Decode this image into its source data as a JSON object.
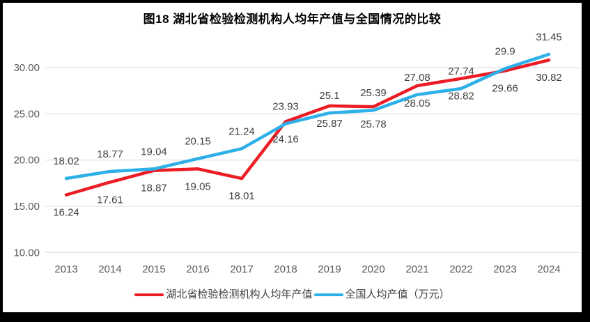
{
  "window": {
    "frame_color": "#000000",
    "background": "#ffffff"
  },
  "chart_data": {
    "type": "line",
    "title": "图18 湖北省检验检测机构人均年产值与全国情况的比较",
    "categories": [
      "2013",
      "2014",
      "2015",
      "2016",
      "2017",
      "2018",
      "2019",
      "2020",
      "2021",
      "2022",
      "2023",
      "2024"
    ],
    "series": [
      {
        "name": "湖北省检验检测机构人均年产值",
        "color": "#EB1C24",
        "values": [
          16.24,
          17.61,
          18.87,
          19.05,
          18.01,
          24.16,
          25.87,
          25.78,
          28.05,
          28.82,
          29.66,
          30.82
        ],
        "labels": [
          "16.24",
          "17.61",
          "18.87",
          "19.05",
          "18.01",
          "24.16",
          "25.87",
          "25.78",
          "28.05",
          "28.82",
          "29.66",
          "30.82"
        ],
        "label_position": "below"
      },
      {
        "name": "全国人均产值（万元）",
        "color": "#2DB0E8",
        "values": [
          18.02,
          18.77,
          19.04,
          20.15,
          21.24,
          23.93,
          25.1,
          25.39,
          27.08,
          27.74,
          29.9,
          31.45
        ],
        "labels": [
          "18.02",
          "18.77",
          "19.04",
          "20.15",
          "21.24",
          "23.93",
          "25.1",
          "25.39",
          "27.08",
          "27.74",
          "29.9",
          "31.45"
        ],
        "label_position": "above"
      }
    ],
    "xlabel": "",
    "ylabel": "",
    "y_axis": {
      "range": [
        10,
        35
      ],
      "tick_values": [
        10,
        15,
        20,
        25,
        30
      ],
      "tick_labels": [
        "10.00",
        "15.00",
        "20.00",
        "25.00",
        "30.00"
      ]
    },
    "grid": true,
    "legend_position": "bottom",
    "styles": {
      "gridline_color": "#D9D9D9",
      "axis_text_color": "#595959",
      "data_label_color": "#404040",
      "legend_text_color": "#404040",
      "title_color": "#000000",
      "line_width": 4.5
    }
  }
}
